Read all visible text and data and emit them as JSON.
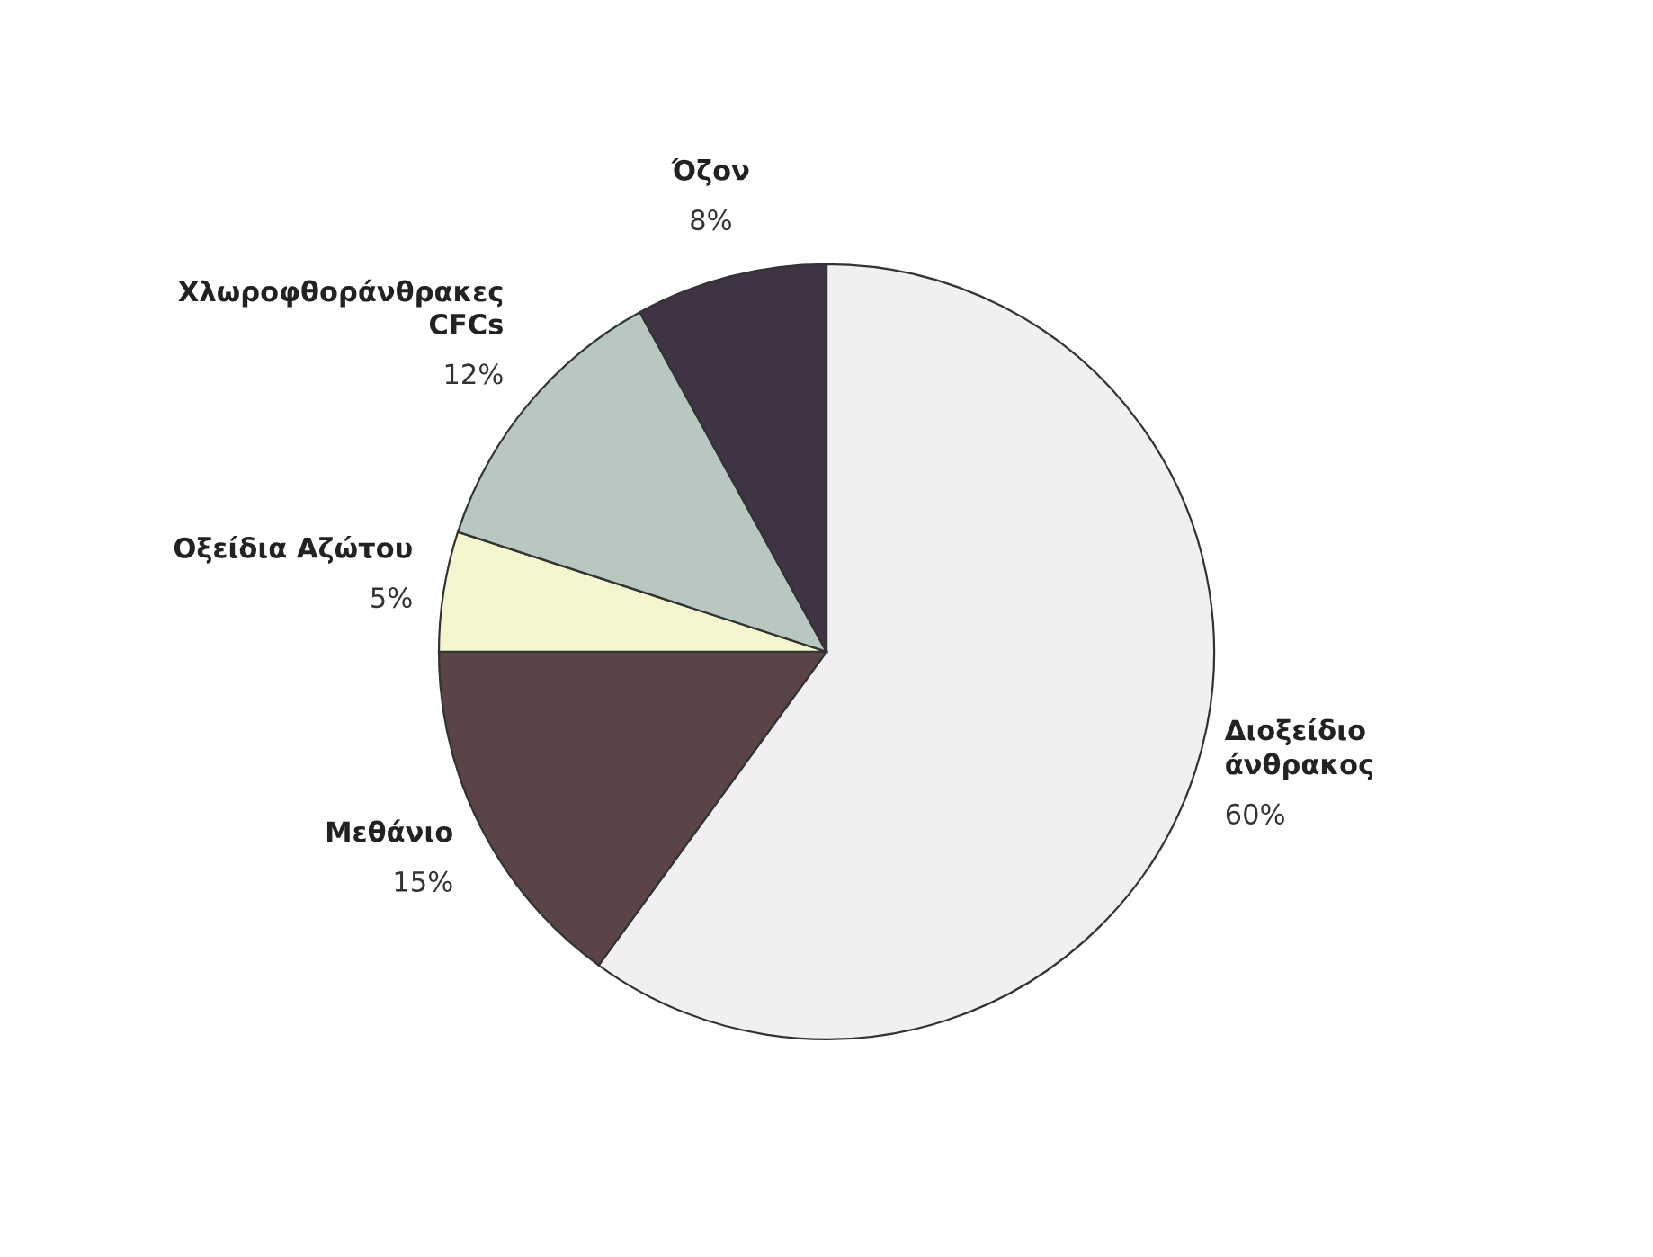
{
  "chart_data": {
    "type": "pie",
    "categories": [
      "Διοξείδιο\nάνθρακος",
      "Μεθάνιο",
      "Οξείδια Αζώτου",
      "Χλωροφθοράνθρακες\nCFCs",
      "Όζον"
    ],
    "values": [
      60,
      15,
      5,
      12,
      8
    ],
    "value_labels": [
      "60%",
      "15%",
      "5%",
      "12%",
      "8%"
    ],
    "colors": [
      "#f0f0f2",
      "#5a4446",
      "#f5f5d0",
      "#b8c8c0",
      "#3f3345"
    ],
    "legend": false
  }
}
